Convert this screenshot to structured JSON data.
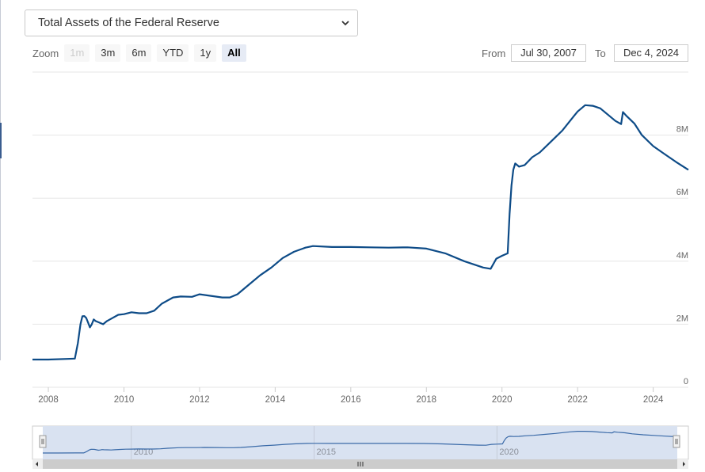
{
  "selector": {
    "value": "Total Assets of the Federal Reserve"
  },
  "zoom": {
    "label": "Zoom",
    "buttons": [
      {
        "label": "1m",
        "state": "disabled"
      },
      {
        "label": "3m",
        "state": "normal"
      },
      {
        "label": "6m",
        "state": "normal"
      },
      {
        "label": "YTD",
        "state": "normal"
      },
      {
        "label": "1y",
        "state": "normal"
      },
      {
        "label": "All",
        "state": "active"
      }
    ]
  },
  "range": {
    "from_label": "From",
    "from_value": "Jul 30, 2007",
    "to_label": "To",
    "to_value": "Dec 4, 2024"
  },
  "colors": {
    "line": "#0d4b87",
    "navigator_fill": "#d9e2f1",
    "navigator_line": "#3a6aa8"
  },
  "chart_data": {
    "type": "line",
    "xlim": [
      2007.58,
      2024.93
    ],
    "ylim": [
      0,
      10000000
    ],
    "x_ticks": [
      "2008",
      "2010",
      "2012",
      "2014",
      "2016",
      "2018",
      "2020",
      "2022",
      "2024"
    ],
    "y_ticks": [
      "0",
      "2M",
      "4M",
      "6M",
      "8M"
    ],
    "grid": true,
    "series": [
      {
        "x": [
          2007.58,
          2008.0,
          2008.5,
          2008.7,
          2008.78,
          2008.85,
          2008.9,
          2008.95,
          2009.0,
          2009.05,
          2009.1,
          2009.15,
          2009.2,
          2009.25,
          2009.35,
          2009.45,
          2009.55,
          2009.7,
          2009.85,
          2010.0,
          2010.2,
          2010.4,
          2010.6,
          2010.8,
          2011.0,
          2011.3,
          2011.5,
          2011.8,
          2012.0,
          2012.3,
          2012.6,
          2012.8,
          2013.0,
          2013.3,
          2013.6,
          2013.9,
          2014.2,
          2014.5,
          2014.8,
          2015.0,
          2015.5,
          2016.0,
          2016.5,
          2017.0,
          2017.5,
          2018.0,
          2018.5,
          2019.0,
          2019.5,
          2019.7,
          2019.85,
          2020.0,
          2020.15,
          2020.2,
          2020.25,
          2020.3,
          2020.35,
          2020.4,
          2020.45,
          2020.6,
          2020.8,
          2021.0,
          2021.3,
          2021.6,
          2021.9,
          2022.0,
          2022.2,
          2022.4,
          2022.6,
          2022.8,
          2023.0,
          2023.15,
          2023.2,
          2023.3,
          2023.5,
          2023.7,
          2024.0,
          2024.3,
          2024.6,
          2024.93
        ],
        "y": [
          880000,
          880000,
          900000,
          910000,
          1400000,
          2000000,
          2250000,
          2260000,
          2200000,
          2050000,
          1900000,
          2000000,
          2150000,
          2100000,
          2050000,
          2000000,
          2100000,
          2200000,
          2300000,
          2320000,
          2380000,
          2350000,
          2350000,
          2430000,
          2650000,
          2850000,
          2880000,
          2870000,
          2950000,
          2900000,
          2850000,
          2850000,
          2950000,
          3250000,
          3550000,
          3800000,
          4100000,
          4300000,
          4430000,
          4480000,
          4450000,
          4450000,
          4440000,
          4430000,
          4440000,
          4400000,
          4250000,
          4000000,
          3800000,
          3760000,
          4080000,
          4170000,
          4250000,
          5500000,
          6400000,
          6900000,
          7100000,
          7050000,
          7000000,
          7050000,
          7300000,
          7450000,
          7800000,
          8150000,
          8600000,
          8750000,
          8950000,
          8930000,
          8850000,
          8650000,
          8450000,
          8350000,
          8730000,
          8600000,
          8370000,
          8000000,
          7650000,
          7400000,
          7150000,
          6900000
        ]
      }
    ]
  },
  "navigator": {
    "year_labels": [
      "2010",
      "2015",
      "2020"
    ]
  }
}
